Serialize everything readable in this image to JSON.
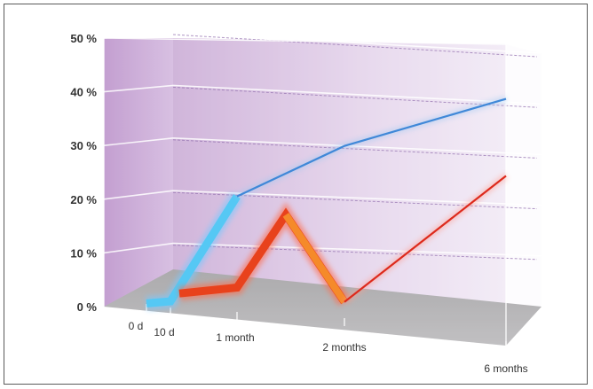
{
  "chart_data": {
    "type": "line",
    "title": "",
    "xlabel": "",
    "ylabel": "",
    "x_tick_labels": [
      "0 d",
      "10 d",
      "1 month",
      "2 months",
      "6 months"
    ],
    "y_tick_labels": [
      "0 %",
      "10 %",
      "20 %",
      "30 %",
      "40 %",
      "50 %"
    ],
    "ylim": [
      0,
      50
    ],
    "grid": true,
    "three_d": true,
    "series": [
      {
        "name": "",
        "color": "#3f88d8",
        "points": [
          {
            "x": "0 d",
            "y": 0
          },
          {
            "x": "10 d",
            "y": 0
          },
          {
            "x": "1 month",
            "y": 20
          },
          {
            "x": "2 months",
            "y": 30
          },
          {
            "x": "6 months",
            "y": 40
          }
        ]
      },
      {
        "name": "",
        "color": "#dd2a1c",
        "points": [
          {
            "x": "10 d",
            "y": 2
          },
          {
            "x": "1 month",
            "y": 3
          },
          {
            "x": "45 d",
            "y": 17
          },
          {
            "x": "2 months",
            "y": 0
          },
          {
            "x": "6 months",
            "y": 25
          }
        ]
      }
    ]
  }
}
